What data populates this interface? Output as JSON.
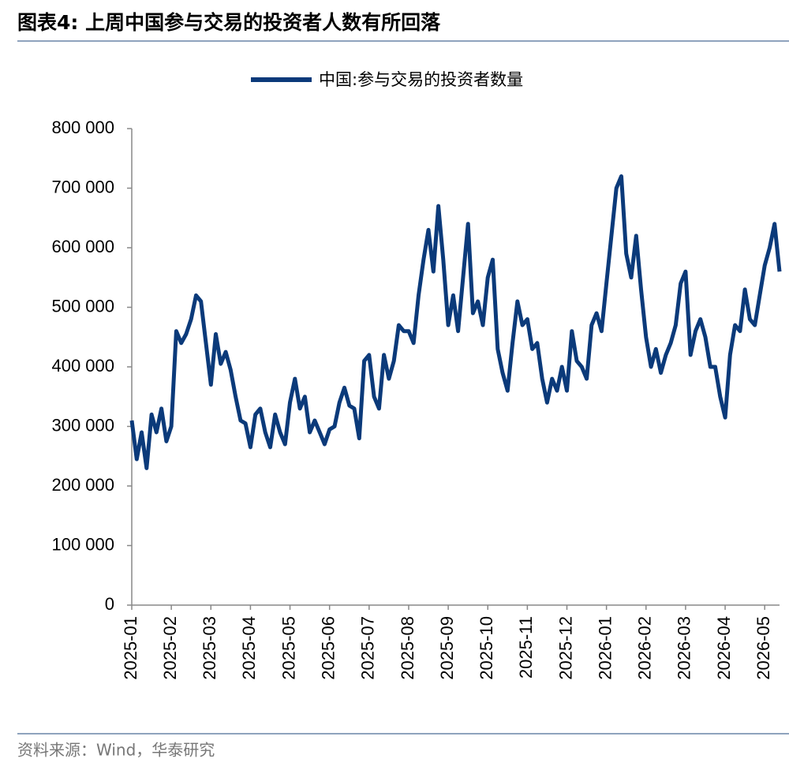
{
  "chart_data": {
    "type": "line",
    "title": "图表4:  上周中国参与交易的投资者人数有所回落",
    "source": "资料来源：Wind，华泰研究",
    "categories": [
      "2025-01",
      null,
      null,
      null,
      null,
      null,
      null,
      null,
      "2025-02",
      null,
      null,
      null,
      null,
      null,
      null,
      null,
      "2025-03",
      null,
      null,
      null,
      null,
      null,
      null,
      null,
      "2025-04",
      null,
      null,
      null,
      null,
      null,
      null,
      null,
      "2025-05",
      null,
      null,
      null,
      null,
      null,
      null,
      null,
      "2025-06",
      null,
      null,
      null,
      null,
      null,
      null,
      null,
      "2025-07",
      null,
      null,
      null,
      null,
      null,
      null,
      null,
      "2025-08",
      null,
      null,
      null,
      null,
      null,
      null,
      null,
      "2025-09",
      null,
      null,
      null,
      null,
      null,
      null,
      null,
      "2025-10",
      null,
      null,
      null,
      null,
      null,
      null,
      null,
      "2025-11",
      null,
      null,
      null,
      null,
      null,
      null,
      null,
      "2025-12",
      null,
      null,
      null,
      null,
      null,
      null,
      null,
      "2026-01",
      null,
      null,
      null,
      null,
      null,
      null,
      null,
      "2026-02",
      null,
      null,
      null,
      null,
      null,
      null,
      null,
      "2026-03",
      null,
      null,
      null,
      null,
      null,
      null,
      null,
      "2026-04",
      null,
      null,
      null,
      null,
      null,
      null,
      null,
      "2026-05",
      null,
      null,
      null
    ],
    "series": [
      {
        "name": "中国:参与交易的投资者数量",
        "color": "#0b3a7a",
        "values": [
          310000,
          245000,
          290000,
          230000,
          320000,
          290000,
          330000,
          275000,
          300000,
          460000,
          440000,
          455000,
          480000,
          520000,
          510000,
          440000,
          370000,
          455000,
          405000,
          425000,
          395000,
          350000,
          310000,
          305000,
          265000,
          320000,
          330000,
          290000,
          265000,
          320000,
          290000,
          270000,
          340000,
          380000,
          330000,
          350000,
          290000,
          310000,
          290000,
          270000,
          295000,
          300000,
          340000,
          365000,
          335000,
          330000,
          280000,
          410000,
          420000,
          350000,
          330000,
          420000,
          380000,
          410000,
          470000,
          460000,
          460000,
          440000,
          520000,
          580000,
          630000,
          560000,
          670000,
          580000,
          470000,
          520000,
          460000,
          550000,
          640000,
          490000,
          510000,
          470000,
          550000,
          580000,
          430000,
          390000,
          360000,
          440000,
          510000,
          470000,
          480000,
          430000,
          440000,
          380000,
          340000,
          380000,
          360000,
          400000,
          360000,
          460000,
          410000,
          400000,
          380000,
          470000,
          490000,
          460000,
          540000,
          620000,
          700000,
          720000,
          590000,
          550000,
          620000,
          530000,
          450000,
          400000,
          430000,
          390000,
          420000,
          440000,
          470000,
          540000,
          560000,
          420000,
          460000,
          480000,
          450000,
          400000,
          400000,
          350000,
          315000,
          420000,
          470000,
          460000,
          530000,
          480000,
          470000,
          520000,
          570000,
          600000,
          640000,
          560000
        ]
      }
    ],
    "ylim": [
      0,
      800000
    ],
    "yticks": [
      0,
      {
        "value": 100000,
        "label": "100 000"
      },
      {
        "value": 200000,
        "label": "200 000"
      },
      {
        "value": 300000,
        "label": "300 000"
      },
      {
        "value": 400000,
        "label": "400 000"
      },
      {
        "value": 500000,
        "label": "500 000"
      },
      {
        "value": 600000,
        "label": "600 000"
      },
      {
        "value": 700000,
        "label": "700 000"
      },
      {
        "value": 800000,
        "label": "800 000"
      }
    ],
    "grid": false
  }
}
